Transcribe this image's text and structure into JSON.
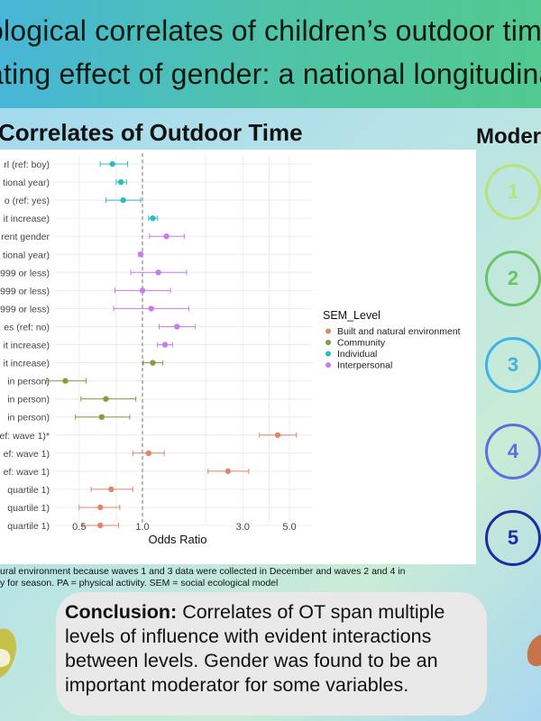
{
  "banner": {
    "line1": "ological correlates of children’s outdoor tim",
    "line2": "ating effect of gender: a national longitudina"
  },
  "section_title": "Correlates of Outdoor Time",
  "moderation": {
    "title": "Moder",
    "circles": [
      {
        "label": "1",
        "color": "#b9e27a"
      },
      {
        "label": "2",
        "color": "#6ac36a"
      },
      {
        "label": "3",
        "color": "#3fb3e6"
      },
      {
        "label": "4",
        "color": "#5a6fe0"
      },
      {
        "label": "5",
        "color": "#1f2ba5"
      }
    ]
  },
  "chart_data": {
    "type": "forest",
    "xlabel": "Odds Ratio",
    "xscale": "log",
    "xlim": [
      0.38,
      6.4
    ],
    "x_ticks": [
      0.5,
      1.0,
      3.0,
      5.0
    ],
    "x_tick_labels": [
      "0.5",
      "1.0",
      "3.0",
      "5.0"
    ],
    "reference_line": 1.0,
    "legend": {
      "title": "SEM_Level",
      "entries": [
        {
          "label": "Built and natural environment",
          "color": "#e2856b"
        },
        {
          "label": "Community",
          "color": "#7fa03c"
        },
        {
          "label": "Individual",
          "color": "#2bbcc4"
        },
        {
          "label": "Interpersonal",
          "color": "#c77cf2"
        }
      ]
    },
    "rows": [
      {
        "label": "rl (ref: boy)",
        "or": 0.72,
        "lo": 0.63,
        "hi": 0.85,
        "level": "Individual"
      },
      {
        "label": "tional year)",
        "or": 0.79,
        "lo": 0.75,
        "hi": 0.84,
        "level": "Individual"
      },
      {
        "label": "o (ref: yes)",
        "or": 0.81,
        "lo": 0.67,
        "hi": 0.98,
        "level": "Individual"
      },
      {
        "label": "it increase)",
        "or": 1.12,
        "lo": 1.07,
        "hi": 1.18,
        "level": "Individual"
      },
      {
        "label": "rent gender",
        "or": 1.3,
        "lo": 1.08,
        "hi": 1.58,
        "level": "Interpersonal"
      },
      {
        "label": "tional year)",
        "or": 0.98,
        "lo": 0.96,
        "hi": 1.0,
        "level": "Interpersonal"
      },
      {
        "label": "999 or less)",
        "or": 1.19,
        "lo": 0.88,
        "hi": 1.62,
        "level": "Interpersonal"
      },
      {
        "label": "999 or less)",
        "or": 1.0,
        "lo": 0.74,
        "hi": 1.36,
        "level": "Interpersonal"
      },
      {
        "label": "999 or less)",
        "or": 1.1,
        "lo": 0.73,
        "hi": 1.66,
        "level": "Interpersonal"
      },
      {
        "label": "es (ref: no)",
        "or": 1.46,
        "lo": 1.2,
        "hi": 1.78,
        "level": "Interpersonal"
      },
      {
        "label": "it increase)",
        "or": 1.28,
        "lo": 1.18,
        "hi": 1.39,
        "level": "Interpersonal"
      },
      {
        "label": "it increase)",
        "or": 1.12,
        "lo": 1.01,
        "hi": 1.25,
        "level": "Community"
      },
      {
        "label": "in person)",
        "or": 0.43,
        "lo": 0.35,
        "hi": 0.54,
        "level": "Community"
      },
      {
        "label": "in person)",
        "or": 0.67,
        "lo": 0.51,
        "hi": 0.93,
        "level": "Community"
      },
      {
        "label": "in person)",
        "or": 0.64,
        "lo": 0.48,
        "hi": 0.87,
        "level": "Community"
      },
      {
        "label": "ef: wave 1)*",
        "or": 4.4,
        "lo": 3.6,
        "hi": 5.4,
        "level": "Built and natural environment"
      },
      {
        "label": "ef: wave 1)",
        "or": 1.07,
        "lo": 0.9,
        "hi": 1.27,
        "level": "Built and natural environment"
      },
      {
        "label": "ef: wave 1)",
        "or": 2.55,
        "lo": 2.05,
        "hi": 3.2,
        "level": "Built and natural environment"
      },
      {
        "label": "quartile 1)",
        "or": 0.71,
        "lo": 0.57,
        "hi": 0.9,
        "level": "Built and natural environment"
      },
      {
        "label": "quartile 1)",
        "or": 0.63,
        "lo": 0.5,
        "hi": 0.78,
        "level": "Built and natural environment"
      },
      {
        "label": "quartile 1)",
        "or": 0.63,
        "lo": 0.52,
        "hi": 0.77,
        "level": "Built and natural environment"
      }
    ]
  },
  "footnote": {
    "line1": "ural environment because waves 1 and 3 data were collected in December and waves 2 and 4 in",
    "line2": "y for season. PA = physical activity. SEM = social ecological model"
  },
  "conclusion": {
    "label": "Conclusion:",
    "text": " Correlates of OT span multiple levels of influence with evident interactions between levels. Gender was found to be an important moderator for some variables."
  }
}
